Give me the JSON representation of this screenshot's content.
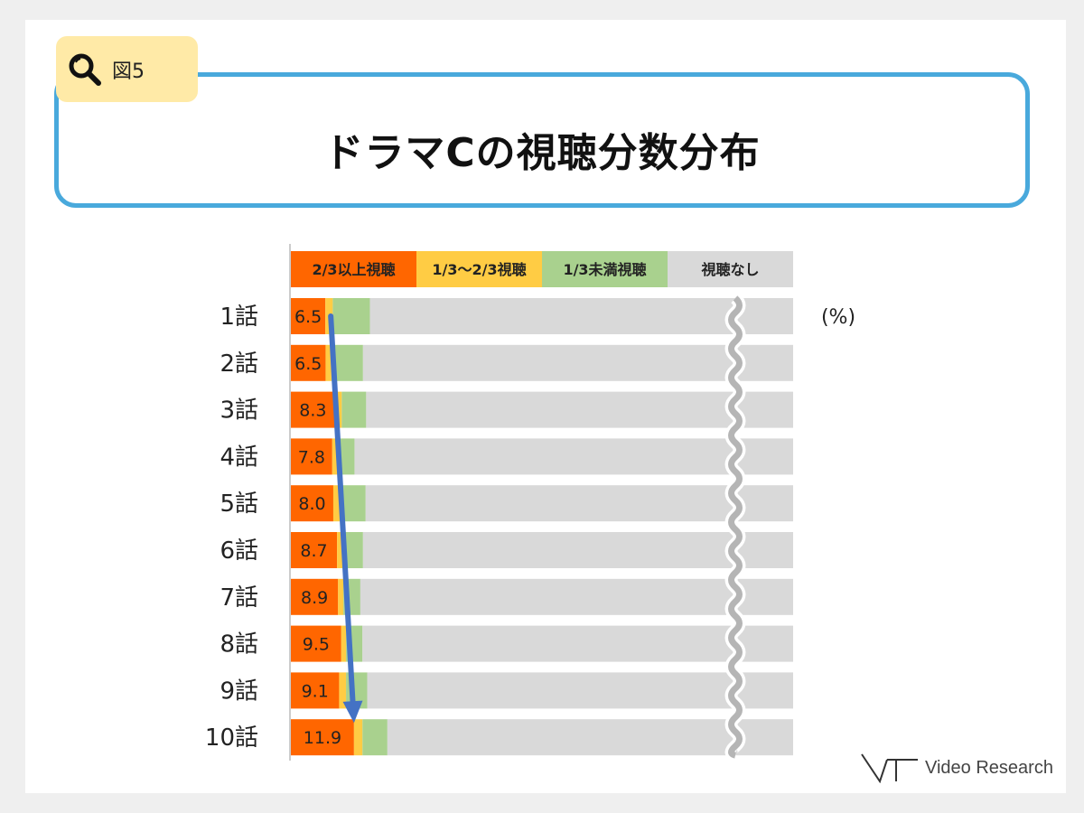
{
  "figure_tag": {
    "label": "図5",
    "icon": "magnifier-icon"
  },
  "title": "ドラマCの視聴分数分布",
  "brand": {
    "text": "Video Research",
    "icon": "video-research-logo"
  },
  "chart_data": {
    "type": "bar",
    "orientation": "horizontal",
    "stacked": true,
    "unit_label": "(%)",
    "categories": [
      "1話",
      "2話",
      "3話",
      "4話",
      "5話",
      "6話",
      "7話",
      "8話",
      "9話",
      "10話"
    ],
    "series": [
      {
        "name": "2/3以上視聴",
        "color": "#ff6600",
        "values": [
          6.5,
          6.5,
          8.3,
          7.8,
          8.0,
          8.7,
          8.9,
          9.5,
          9.1,
          11.9
        ]
      },
      {
        "name": "1/3～2/3視聴",
        "color": "#ffcc44",
        "values": [
          1.4,
          1.1,
          1.3,
          1.2,
          1.2,
          1.2,
          1.0,
          0.9,
          1.3,
          1.6
        ]
      },
      {
        "name": "1/3未満視聴",
        "color": "#a9d18e",
        "values": [
          7.0,
          5.9,
          4.6,
          3.0,
          4.9,
          3.7,
          3.2,
          3.1,
          4.0,
          4.7
        ]
      },
      {
        "name": "視聴なし",
        "color": "#d9d9d9",
        "values": [
          79.8,
          80.5,
          80.5,
          82.7,
          80.6,
          81.1,
          81.6,
          81.2,
          80.3,
          76.5
        ]
      }
    ],
    "data_labels": [
      "6.5",
      "6.5",
      "8.3",
      "7.8",
      "8.0",
      "8.7",
      "8.9",
      "9.5",
      "9.1",
      "11.9"
    ],
    "axis_break": true,
    "trend_arrow": {
      "from_category": "1話",
      "to_category": "10話",
      "color": "#4472c4"
    },
    "grid": false,
    "legend_position": "top"
  }
}
